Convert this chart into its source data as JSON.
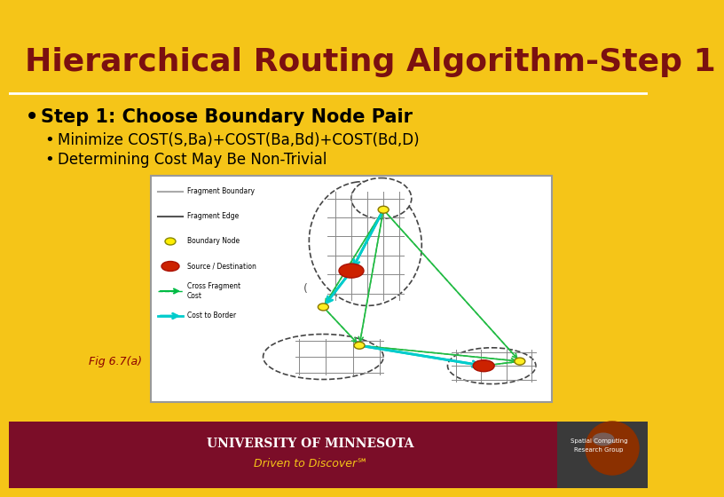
{
  "title": "Hierarchical Routing Algorithm-Step 1",
  "title_color": "#7B1010",
  "title_bg": "#F5C518",
  "title_fontsize": 26,
  "body_bg": "#F5C518",
  "bullet1": "Step 1: Choose Boundary Node Pair",
  "bullet2": "Minimize COST(S,Ba)+COST(Ba,Bd)+COST(Bd,D)",
  "bullet3": "Determining Cost May Be Non-Trivial",
  "fig_caption": "Fig 6.7(a)",
  "footer_bg": "#7B0D28",
  "footer_text1": "UNIVERSITY OF MINNESOTA",
  "footer_text2": "Driven to Discover℠",
  "footer_text_color": "#FFFFFF",
  "footer_subtitle_color": "#F5C518",
  "sidebar_text1": "Spatial Computing",
  "sidebar_text2": "Research Group"
}
